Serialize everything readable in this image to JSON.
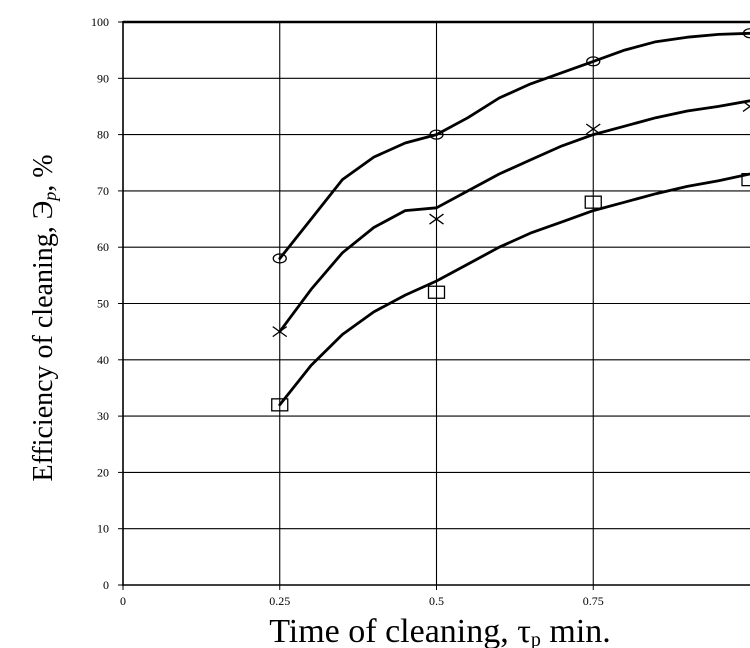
{
  "chart_data": {
    "type": "line",
    "xlabel_main": "Time of cleaning, τ",
    "xlabel_sub": "p",
    "xlabel_unit": " min.",
    "ylabel_main": "Efficiency of cleaning, Э",
    "ylabel_sub": "p",
    "ylabel_unit": ", %",
    "xlim": [
      0,
      1.0
    ],
    "ylim": [
      0,
      100
    ],
    "x_ticks": [
      0,
      0.25,
      0.5,
      0.75
    ],
    "x_tick_labels": [
      "0",
      "0.25",
      "0.5",
      "0.75"
    ],
    "y_ticks": [
      0,
      10,
      20,
      30,
      40,
      50,
      60,
      70,
      80,
      90,
      100
    ],
    "y_tick_labels": [
      "0",
      "10",
      "20",
      "30",
      "40",
      "50",
      "60",
      "70",
      "80",
      "90",
      "100"
    ],
    "grid": true,
    "series": [
      {
        "marker": "circle",
        "points": {
          "x": [
            0.25,
            0.5,
            0.75,
            1.0
          ],
          "y": [
            58,
            80,
            93,
            98
          ]
        },
        "curve": {
          "x": [
            0.25,
            0.3,
            0.35,
            0.4,
            0.45,
            0.5,
            0.55,
            0.6,
            0.65,
            0.7,
            0.75,
            0.8,
            0.85,
            0.9,
            0.95,
            1.0
          ],
          "y": [
            58,
            65,
            72,
            76,
            78.5,
            80,
            83,
            86.5,
            89,
            91,
            93,
            95,
            96.5,
            97.3,
            97.8,
            98
          ]
        }
      },
      {
        "marker": "x",
        "points": {
          "x": [
            0.25,
            0.5,
            0.75,
            1.0
          ],
          "y": [
            45,
            65,
            81,
            85
          ]
        },
        "curve": {
          "x": [
            0.25,
            0.3,
            0.35,
            0.4,
            0.45,
            0.5,
            0.55,
            0.6,
            0.65,
            0.7,
            0.75,
            0.8,
            0.85,
            0.9,
            0.95,
            1.0
          ],
          "y": [
            45,
            52.5,
            59,
            63.5,
            66.5,
            67,
            70,
            73,
            75.5,
            78,
            80,
            81.5,
            83,
            84.2,
            85,
            86
          ]
        }
      },
      {
        "marker": "square",
        "points": {
          "x": [
            0.25,
            0.5,
            0.75,
            1.0
          ],
          "y": [
            32,
            52,
            68,
            72
          ]
        },
        "curve": {
          "x": [
            0.25,
            0.3,
            0.35,
            0.4,
            0.45,
            0.5,
            0.55,
            0.6,
            0.65,
            0.7,
            0.75,
            0.8,
            0.85,
            0.9,
            0.95,
            1.0
          ],
          "y": [
            32,
            39,
            44.5,
            48.5,
            51.5,
            54,
            57,
            60,
            62.5,
            64.5,
            66.5,
            68,
            69.5,
            70.8,
            71.8,
            73
          ]
        }
      }
    ]
  }
}
